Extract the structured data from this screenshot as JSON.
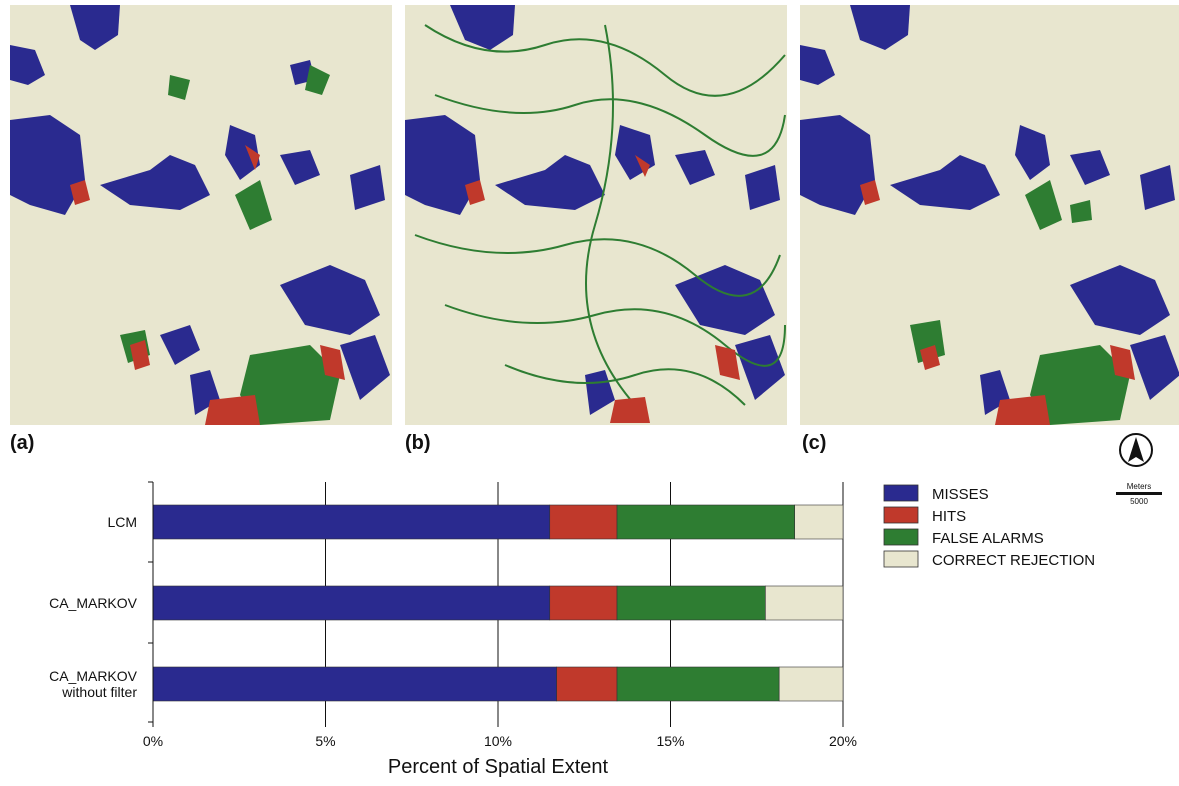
{
  "panels": [
    {
      "label": "(a)"
    },
    {
      "label": "(b)"
    },
    {
      "label": "(c)"
    }
  ],
  "scale_bar": {
    "unit": "Meters",
    "value": "5000"
  },
  "colors": {
    "misses": "#2a2a8f",
    "hits": "#c0392b",
    "false_alarms": "#2e7d32",
    "correct_rejection": "#e8e6cf"
  },
  "chart_data": {
    "type": "bar",
    "orientation": "horizontal",
    "stacked": true,
    "categories": [
      "LCM",
      "CA_MARKOV",
      "CA_MARKOV\nwithout filter"
    ],
    "series": [
      {
        "name": "MISSES",
        "color": "#2a2a8f",
        "values": [
          11.5,
          11.5,
          11.7
        ]
      },
      {
        "name": "HITS",
        "color": "#c0392b",
        "values": [
          1.95,
          1.95,
          1.75
        ]
      },
      {
        "name": "FALSE ALARMS",
        "color": "#2e7d32",
        "values": [
          5.15,
          4.3,
          4.7
        ]
      },
      {
        "name": "CORRECT REJECTION",
        "color": "#e8e6cf",
        "values": [
          1.4,
          2.25,
          1.85
        ]
      }
    ],
    "xlabel": "Percent of Spatial Extent",
    "ylabel": "",
    "xlim": [
      0,
      20
    ],
    "xticks": [
      "0%",
      "5%",
      "10%",
      "15%",
      "20%"
    ],
    "grid": "vertical",
    "legend_position": "right"
  }
}
